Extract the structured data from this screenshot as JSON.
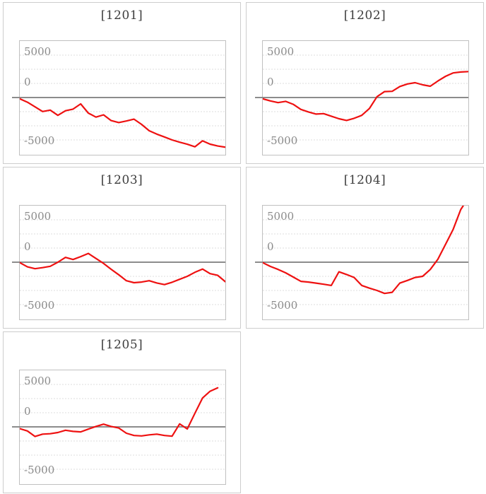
{
  "axis_labels": {
    "top": "5000",
    "zero": "0",
    "bottom": "-5000"
  },
  "style": {
    "line_color": "#ee1111",
    "grid_color": "#dcdcdc",
    "zero_line_color": "#8c8c8c",
    "panel_border_color": "#cdcdcd",
    "plot_border_color": "#c0c0c0",
    "title_color": "#3d3d3d",
    "axis_label_color": "#8a8a8a"
  },
  "chart_data": [
    {
      "type": "line",
      "title": "[1201]",
      "ylabel": "",
      "xlabel": "",
      "y_tick_labels": [
        "5000",
        "0",
        "-5000"
      ],
      "ylim": [
        -6750,
        6667
      ],
      "gridline_interval": 1666.7,
      "zero_line": true,
      "legend": "none",
      "values": [
        -150,
        -550,
        -1100,
        -1650,
        -1480,
        -2100,
        -1560,
        -1370,
        -750,
        -1830,
        -2310,
        -2040,
        -2720,
        -2950,
        -2770,
        -2550,
        -3170,
        -3920,
        -4320,
        -4650,
        -5000,
        -5270,
        -5510,
        -5810,
        -5100,
        -5500,
        -5720,
        -5860
      ]
    },
    {
      "type": "line",
      "title": "[1202]",
      "ylabel": "",
      "xlabel": "",
      "y_tick_labels": [
        "5000",
        "0",
        "-5000"
      ],
      "ylim": [
        -6750,
        6667
      ],
      "gridline_interval": 1666.7,
      "zero_line": true,
      "legend": "none",
      "values": [
        -150,
        -400,
        -600,
        -450,
        -800,
        -1400,
        -1700,
        -1950,
        -1900,
        -2200,
        -2500,
        -2700,
        -2450,
        -2100,
        -1300,
        100,
        700,
        730,
        1300,
        1600,
        1750,
        1500,
        1330,
        1950,
        2500,
        2900,
        3010,
        3060
      ]
    },
    {
      "type": "line",
      "title": "[1203]",
      "ylabel": "",
      "xlabel": "",
      "y_tick_labels": [
        "5000",
        "0",
        "-5000"
      ],
      "ylim": [
        -6750,
        6667
      ],
      "gridline_interval": 1666.7,
      "zero_line": true,
      "legend": "none",
      "values": [
        -50,
        -550,
        -770,
        -640,
        -480,
        0,
        570,
        320,
        660,
        1030,
        440,
        -140,
        -830,
        -1480,
        -2180,
        -2420,
        -2340,
        -2180,
        -2450,
        -2640,
        -2370,
        -2020,
        -1670,
        -1190,
        -810,
        -1350,
        -1550,
        -2300
      ]
    },
    {
      "type": "line",
      "title": "[1204]",
      "ylabel": "",
      "xlabel": "",
      "y_tick_labels": [
        "5000",
        "0",
        "-5000"
      ],
      "ylim": [
        -6750,
        6667
      ],
      "gridline_interval": 1666.7,
      "zero_line": true,
      "legend": "none",
      "values": [
        -60,
        -500,
        -850,
        -1250,
        -1750,
        -2260,
        -2340,
        -2470,
        -2600,
        -2740,
        -1130,
        -1450,
        -1800,
        -2740,
        -3060,
        -3330,
        -3680,
        -3550,
        -2470,
        -2150,
        -1800,
        -1670,
        -860,
        350,
        2100,
        3850,
        6200,
        7600
      ]
    },
    {
      "type": "line",
      "title": "[1205]",
      "ylabel": "",
      "xlabel": "",
      "y_tick_labels": [
        "5000",
        "0",
        "-5000"
      ],
      "ylim": [
        -6750,
        6667
      ],
      "gridline_interval": 1666.7,
      "zero_line": true,
      "legend": "none",
      "values": [
        -210,
        -480,
        -1130,
        -860,
        -810,
        -670,
        -400,
        -530,
        -590,
        -270,
        50,
        320,
        50,
        -130,
        -750,
        -1020,
        -1070,
        -940,
        -860,
        -1020,
        -1100,
        350,
        -250,
        1600,
        3400,
        4200,
        4600
      ]
    }
  ]
}
